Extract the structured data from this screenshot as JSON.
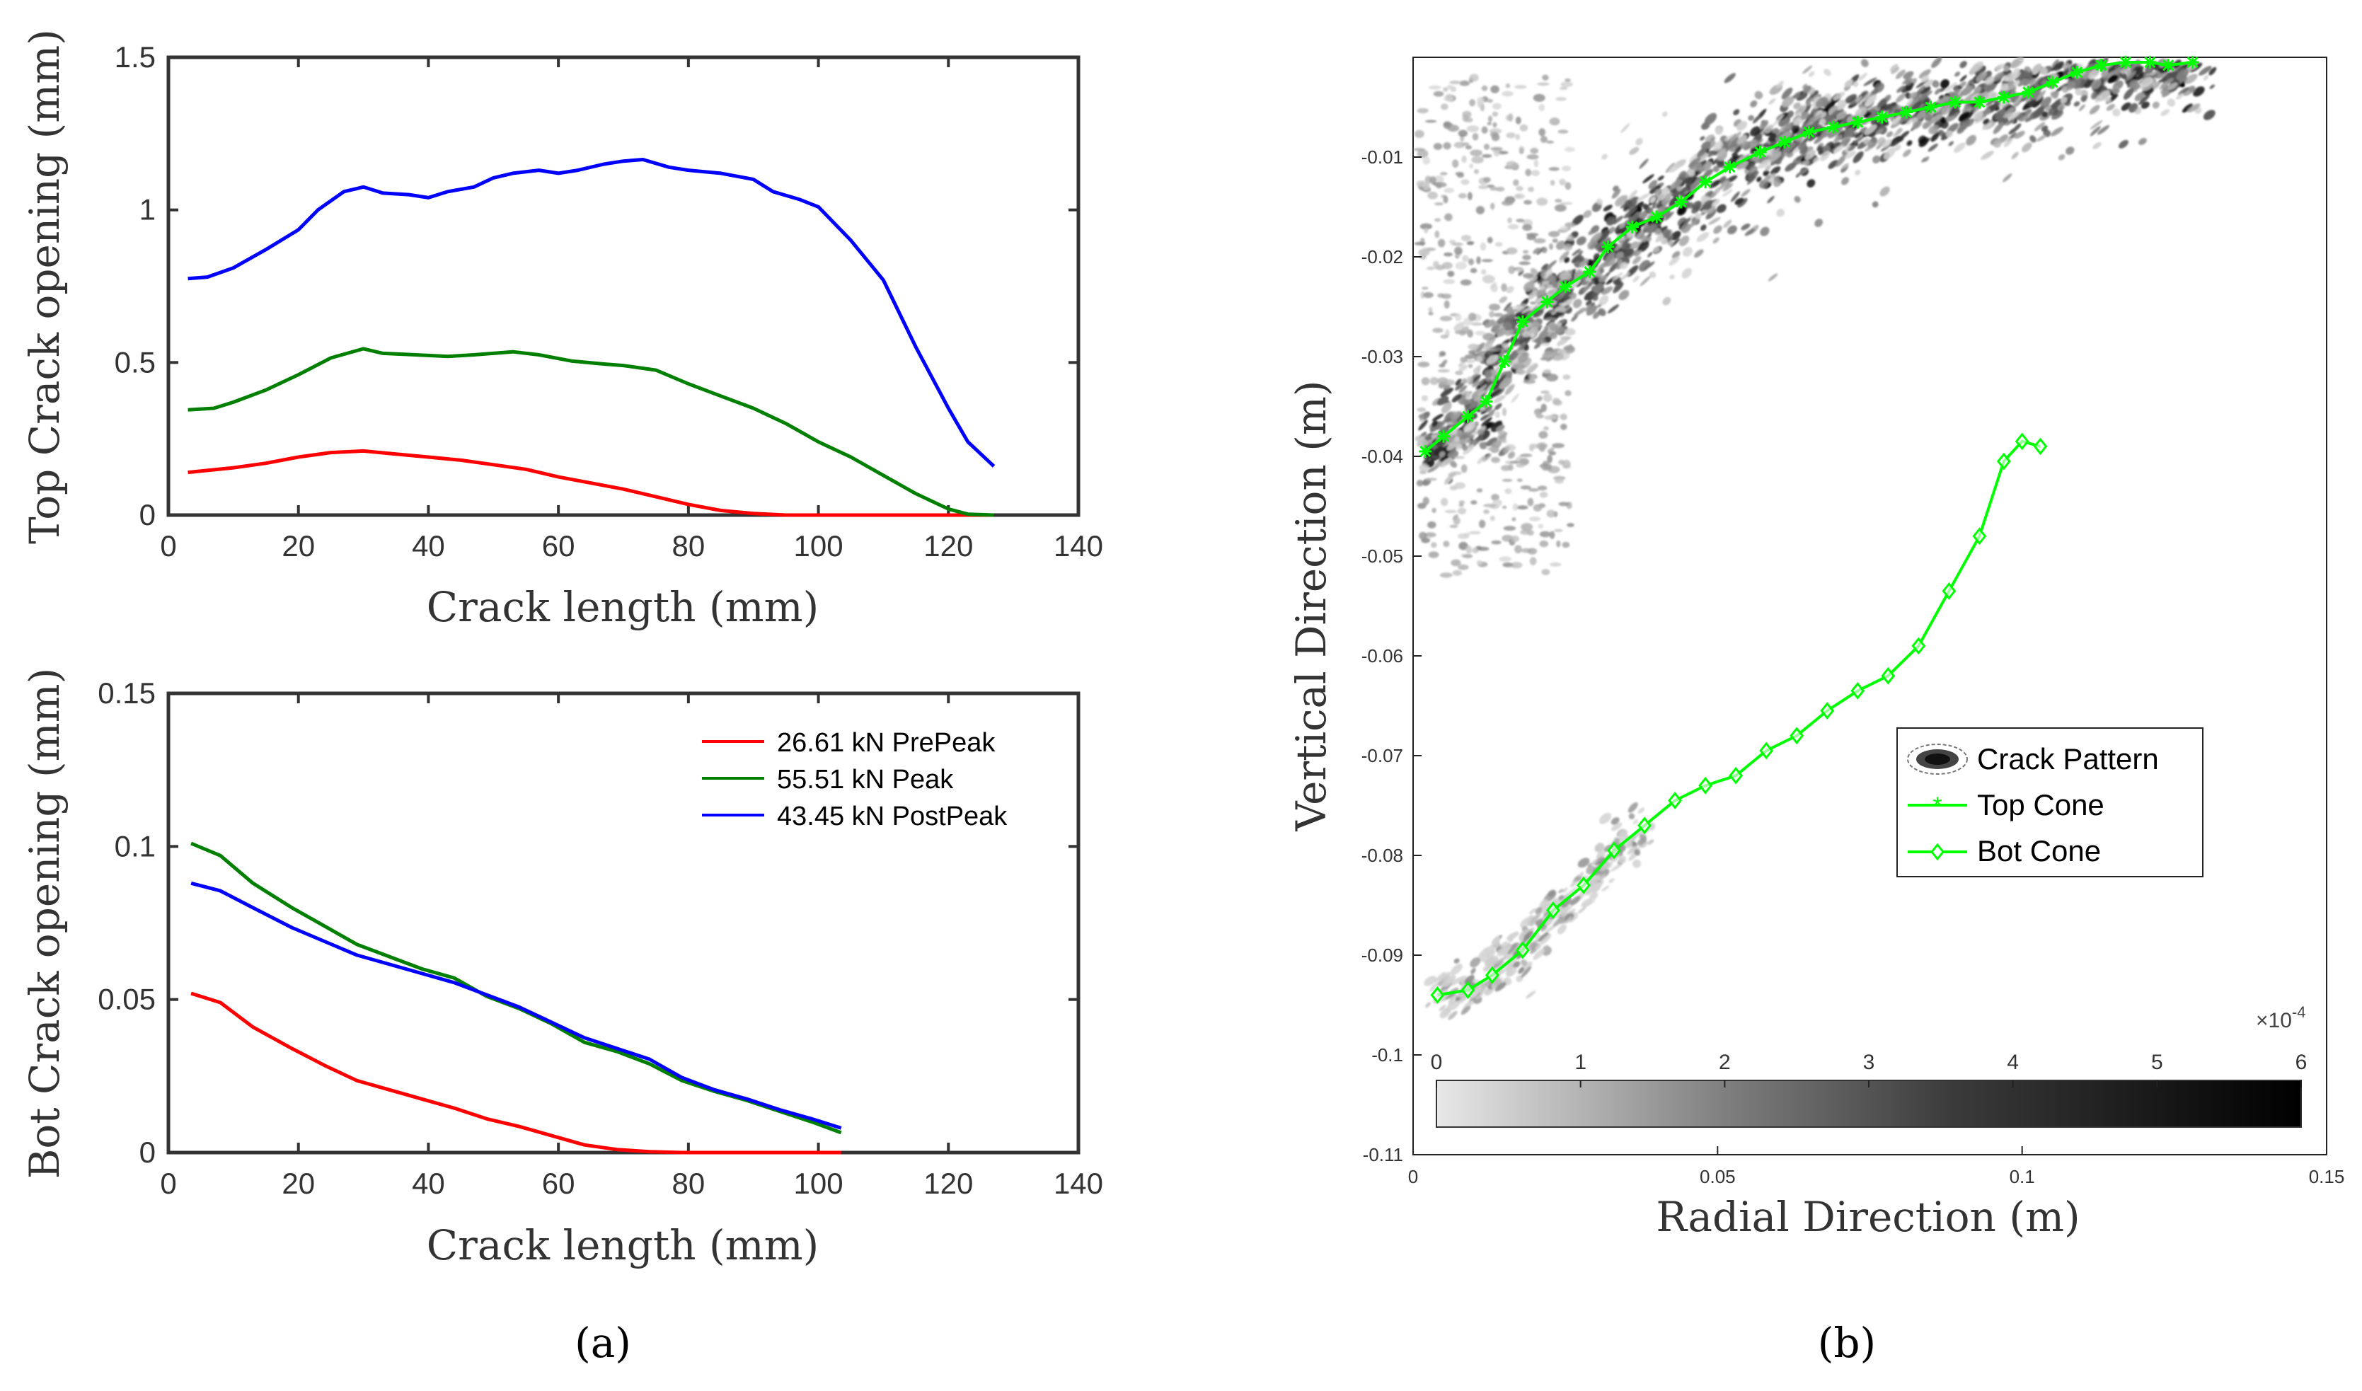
{
  "chart_data": [
    {
      "id": "top",
      "type": "line",
      "xlabel": "Crack length (mm)",
      "ylabel": "Top Crack opening (mm)",
      "xlim": [
        0,
        140
      ],
      "ylim": [
        0,
        1.5
      ],
      "xticks": [
        "0",
        "20",
        "40",
        "60",
        "80",
        "100",
        "120",
        "140"
      ],
      "yticks": [
        "0",
        "0.5",
        "1",
        "1.5"
      ],
      "series": [
        {
          "name": "26.61 kN PrePeak",
          "color": "#ff0000",
          "x": [
            3,
            10,
            15,
            20,
            25,
            30,
            35,
            40,
            45,
            50,
            55,
            60,
            65,
            70,
            75,
            80,
            85,
            90,
            95,
            100,
            105,
            110,
            115,
            120,
            125,
            127
          ],
          "y": [
            0.14,
            0.155,
            0.17,
            0.19,
            0.205,
            0.21,
            0.2,
            0.19,
            0.18,
            0.165,
            0.15,
            0.125,
            0.105,
            0.085,
            0.06,
            0.035,
            0.015,
            0.005,
            0,
            0,
            0,
            0,
            0,
            0,
            0,
            0
          ]
        },
        {
          "name": "55.51 kN Peak",
          "color": "#007f00",
          "x": [
            3,
            7,
            10,
            15,
            20,
            25,
            30,
            33,
            38,
            43,
            47,
            53,
            57,
            62,
            67,
            70,
            75,
            80,
            85,
            90,
            95,
            100,
            105,
            110,
            115,
            120,
            123,
            127
          ],
          "y": [
            0.345,
            0.35,
            0.37,
            0.41,
            0.46,
            0.515,
            0.545,
            0.53,
            0.525,
            0.52,
            0.525,
            0.535,
            0.525,
            0.505,
            0.495,
            0.49,
            0.475,
            0.43,
            0.39,
            0.35,
            0.3,
            0.24,
            0.19,
            0.13,
            0.07,
            0.02,
            0.003,
            0
          ]
        },
        {
          "name": "43.45 kN PostPeak",
          "color": "#0000ff",
          "x": [
            3,
            6,
            10,
            15,
            20,
            23,
            27,
            30,
            33,
            37,
            40,
            43,
            47,
            50,
            53,
            57,
            60,
            63,
            67,
            70,
            73,
            77,
            80,
            85,
            90,
            93,
            97,
            100,
            105,
            110,
            115,
            120,
            123,
            127
          ],
          "y": [
            0.775,
            0.78,
            0.81,
            0.87,
            0.935,
            1.0,
            1.06,
            1.075,
            1.055,
            1.05,
            1.04,
            1.06,
            1.075,
            1.105,
            1.12,
            1.13,
            1.12,
            1.13,
            1.15,
            1.16,
            1.165,
            1.14,
            1.13,
            1.12,
            1.1,
            1.06,
            1.035,
            1.01,
            0.9,
            0.77,
            0.55,
            0.35,
            0.24,
            0.16
          ]
        }
      ]
    },
    {
      "id": "bot",
      "type": "line",
      "xlabel": "Crack length (mm)",
      "ylabel": "Bot Crack opening (mm)",
      "xlim": [
        0,
        140
      ],
      "ylim": [
        0,
        0.15
      ],
      "xticks": [
        "0",
        "20",
        "40",
        "60",
        "80",
        "100",
        "120",
        "140"
      ],
      "yticks": [
        "0",
        "0.05",
        "0.1",
        "0.15"
      ],
      "legend": [
        "26.61 kN PrePeak",
        "55.51 kN Peak",
        "43.45 kN PostPeak"
      ],
      "series": [
        {
          "name": "26.61 kN PrePeak",
          "color": "#ff0000",
          "x": [
            3.5,
            8,
            13,
            19,
            24,
            29,
            34,
            39,
            44,
            49,
            54,
            59,
            64,
            69,
            74,
            79,
            84,
            89,
            94,
            99,
            103.5
          ],
          "y": [
            0.052,
            0.049,
            0.041,
            0.034,
            0.0285,
            0.0235,
            0.0205,
            0.0175,
            0.0145,
            0.011,
            0.0085,
            0.0055,
            0.0025,
            0.001,
            0.0003,
            0,
            0,
            0,
            0,
            0,
            0
          ]
        },
        {
          "name": "55.51 kN Peak",
          "color": "#007f00",
          "x": [
            3.5,
            8,
            13,
            19,
            24,
            29,
            34,
            39,
            44,
            49,
            54,
            59,
            64,
            69,
            74,
            79,
            84,
            89,
            94,
            99,
            103.5
          ],
          "y": [
            0.101,
            0.097,
            0.088,
            0.08,
            0.074,
            0.068,
            0.064,
            0.06,
            0.057,
            0.051,
            0.047,
            0.042,
            0.036,
            0.033,
            0.029,
            0.0235,
            0.02,
            0.017,
            0.0135,
            0.01,
            0.0065
          ]
        },
        {
          "name": "43.45 kN PostPeak",
          "color": "#0000ff",
          "x": [
            3.5,
            8,
            13,
            19,
            24,
            29,
            34,
            39,
            44,
            49,
            54,
            59,
            64,
            69,
            74,
            79,
            84,
            89,
            94,
            99,
            103.5
          ],
          "y": [
            0.088,
            0.0855,
            0.08,
            0.0735,
            0.069,
            0.0645,
            0.0615,
            0.0585,
            0.0555,
            0.0515,
            0.0475,
            0.0425,
            0.0375,
            0.034,
            0.0305,
            0.0245,
            0.0205,
            0.0175,
            0.014,
            0.011,
            0.008
          ]
        }
      ]
    },
    {
      "id": "cone",
      "type": "scatter",
      "xlabel": "Radial Direction (m)",
      "ylabel": "Vertical Direction (m)",
      "xlim": [
        0,
        0.15
      ],
      "ylim": [
        -0.11,
        0
      ],
      "xticks": [
        "0",
        "0.05",
        "0.1",
        "0.15"
      ],
      "yticks": [
        "-0.01",
        "-0.02",
        "-0.03",
        "-0.04",
        "-0.05",
        "-0.06",
        "-0.07",
        "-0.08",
        "-0.09",
        "-0.1",
        "-0.11"
      ],
      "legend": [
        "Crack Pattern",
        "Top Cone",
        "Bot Cone"
      ],
      "series": [
        {
          "name": "Top Cone",
          "color": "#00ff00",
          "marker": "asterisk",
          "x": [
            0.002,
            0.005,
            0.009,
            0.012,
            0.015,
            0.018,
            0.022,
            0.025,
            0.029,
            0.032,
            0.036,
            0.04,
            0.044,
            0.048,
            0.052,
            0.057,
            0.061,
            0.065,
            0.069,
            0.073,
            0.077,
            0.081,
            0.085,
            0.089,
            0.093,
            0.097,
            0.101,
            0.105,
            0.109,
            0.113,
            0.117,
            0.121,
            0.124,
            0.128
          ],
          "y": [
            -0.0395,
            -0.038,
            -0.036,
            -0.0345,
            -0.0305,
            -0.0265,
            -0.0245,
            -0.023,
            -0.0215,
            -0.019,
            -0.017,
            -0.016,
            -0.0145,
            -0.0125,
            -0.011,
            -0.0095,
            -0.0085,
            -0.0075,
            -0.007,
            -0.0065,
            -0.006,
            -0.0055,
            -0.005,
            -0.0045,
            -0.0045,
            -0.004,
            -0.0035,
            -0.0025,
            -0.0015,
            -0.0008,
            -0.0005,
            -0.0005,
            -0.0008,
            -0.0005
          ]
        },
        {
          "name": "Bot Cone",
          "color": "#00ff00",
          "marker": "diamond",
          "x": [
            0.004,
            0.009,
            0.013,
            0.018,
            0.023,
            0.028,
            0.033,
            0.038,
            0.043,
            0.048,
            0.053,
            0.058,
            0.063,
            0.068,
            0.073,
            0.078,
            0.083,
            0.088,
            0.093,
            0.097,
            0.1,
            0.103
          ],
          "y": [
            -0.094,
            -0.0935,
            -0.092,
            -0.0895,
            -0.0855,
            -0.083,
            -0.0795,
            -0.077,
            -0.0745,
            -0.073,
            -0.072,
            -0.0695,
            -0.068,
            -0.0655,
            -0.0635,
            -0.062,
            -0.059,
            -0.0535,
            -0.048,
            -0.0405,
            -0.0385,
            -0.039
          ]
        }
      ]
    }
  ],
  "colorbar": {
    "exponent_base": "×10",
    "exponent": "-4",
    "ticks": [
      "0",
      "1",
      "2",
      "3",
      "4",
      "5",
      "6"
    ],
    "range": [
      0,
      6
    ]
  },
  "panel_labels": {
    "a": "(a)",
    "b": "(b)"
  }
}
